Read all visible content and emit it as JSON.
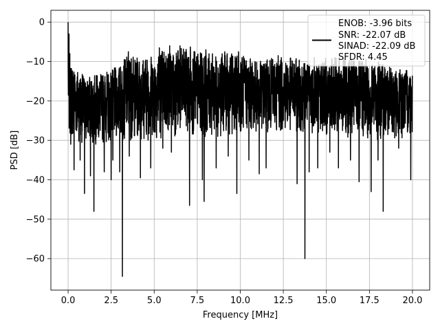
{
  "chart_data": {
    "type": "line",
    "title": "",
    "xlabel": "Frequency [MHz]",
    "ylabel": "PSD [dB]",
    "xlim": [
      -1.0,
      21.0
    ],
    "ylim": [
      -68,
      3
    ],
    "grid": true,
    "line_color": "#000000",
    "legend_position": "top-right",
    "legend_entries": [
      "ENOB: -3.96 bits",
      "SNR: -22.07 dB",
      "SINAD: -22.09 dB",
      "SFDR: 4.45"
    ],
    "x_ticks": [
      0.0,
      2.5,
      5.0,
      7.5,
      10.0,
      12.5,
      15.0,
      17.5,
      20.0
    ],
    "x_tick_labels": [
      "0.0",
      "2.5",
      "5.0",
      "7.5",
      "10.0",
      "12.5",
      "15.0",
      "17.5",
      "20.0"
    ],
    "y_ticks": [
      0,
      -10,
      -20,
      -30,
      -40,
      -50,
      -60
    ],
    "y_tick_labels": [
      "0",
      "−10",
      "−20",
      "−30",
      "−40",
      "−50",
      "−60"
    ],
    "series": [
      {
        "x_range": [
          0.0,
          20.0
        ],
        "peak": {
          "x": 0.0,
          "y": 0.0
        },
        "band_upper_envelope": [
          [
            0.0,
            -12
          ],
          [
            0.2,
            -10
          ],
          [
            1.0,
            -14
          ],
          [
            2.0,
            -13
          ],
          [
            3.0,
            -11
          ],
          [
            3.5,
            -8
          ],
          [
            4.0,
            -9
          ],
          [
            5.0,
            -8
          ],
          [
            5.5,
            -6.5
          ],
          [
            6.0,
            -7
          ],
          [
            6.5,
            -6.5
          ],
          [
            7.0,
            -7
          ],
          [
            8.0,
            -8
          ],
          [
            9.0,
            -8
          ],
          [
            10.0,
            -8
          ],
          [
            11.0,
            -10
          ],
          [
            12.0,
            -9
          ],
          [
            13.0,
            -9
          ],
          [
            14.0,
            -10
          ],
          [
            15.0,
            -9
          ],
          [
            16.0,
            -9
          ],
          [
            17.0,
            -10
          ],
          [
            18.0,
            -10
          ],
          [
            19.0,
            -12
          ],
          [
            20.0,
            -12
          ]
        ],
        "band_lower_envelope": [
          [
            0.0,
            -29
          ],
          [
            1.0,
            -31
          ],
          [
            2.0,
            -31
          ],
          [
            3.0,
            -30
          ],
          [
            4.0,
            -30
          ],
          [
            5.0,
            -30
          ],
          [
            6.0,
            -29
          ],
          [
            7.0,
            -29
          ],
          [
            8.0,
            -29
          ],
          [
            9.0,
            -29
          ],
          [
            10.0,
            -28
          ],
          [
            11.0,
            -28
          ],
          [
            12.0,
            -28
          ],
          [
            13.0,
            -28
          ],
          [
            14.0,
            -28
          ],
          [
            15.0,
            -29
          ],
          [
            16.0,
            -29
          ],
          [
            17.0,
            -30
          ],
          [
            18.0,
            -30
          ],
          [
            19.0,
            -30
          ],
          [
            20.0,
            -29
          ]
        ],
        "dips": [
          [
            0.15,
            -31
          ],
          [
            0.35,
            -37.5
          ],
          [
            0.7,
            -35
          ],
          [
            0.95,
            -43.5
          ],
          [
            1.3,
            -39
          ],
          [
            1.5,
            -48
          ],
          [
            2.1,
            -38
          ],
          [
            2.5,
            -40
          ],
          [
            2.6,
            -35
          ],
          [
            3.0,
            -38
          ],
          [
            3.15,
            -64.5
          ],
          [
            3.55,
            -34
          ],
          [
            4.2,
            -39.5
          ],
          [
            4.8,
            -37
          ],
          [
            5.5,
            -32
          ],
          [
            6.0,
            -33
          ],
          [
            6.5,
            -33
          ],
          [
            7.05,
            -46.5
          ],
          [
            7.8,
            -40
          ],
          [
            7.9,
            -45.5
          ],
          [
            8.6,
            -37
          ],
          [
            9.3,
            -34
          ],
          [
            9.8,
            -43.5
          ],
          [
            10.5,
            -35
          ],
          [
            11.1,
            -38.5
          ],
          [
            11.5,
            -37
          ],
          [
            12.2,
            -38
          ],
          [
            13.3,
            -41
          ],
          [
            13.75,
            -60
          ],
          [
            14.0,
            -38
          ],
          [
            14.5,
            -37
          ],
          [
            15.2,
            -33
          ],
          [
            15.7,
            -37
          ],
          [
            16.4,
            -35
          ],
          [
            16.9,
            -40.5
          ],
          [
            17.6,
            -43
          ],
          [
            18.0,
            -35
          ],
          [
            18.3,
            -48
          ],
          [
            19.2,
            -32
          ],
          [
            19.9,
            -40
          ]
        ],
        "peaks_extra": [
          [
            0.05,
            -3
          ],
          [
            0.1,
            -8
          ],
          [
            3.5,
            -7.5
          ],
          [
            5.3,
            -6.5
          ],
          [
            5.9,
            -6
          ],
          [
            6.5,
            -6
          ],
          [
            7.1,
            -6.3
          ],
          [
            8.0,
            -7
          ],
          [
            9.1,
            -7.5
          ],
          [
            9.9,
            -7.5
          ],
          [
            12.2,
            -8.5
          ],
          [
            14.3,
            -9
          ],
          [
            15.5,
            -9
          ],
          [
            17.3,
            -9.5
          ]
        ]
      }
    ]
  }
}
